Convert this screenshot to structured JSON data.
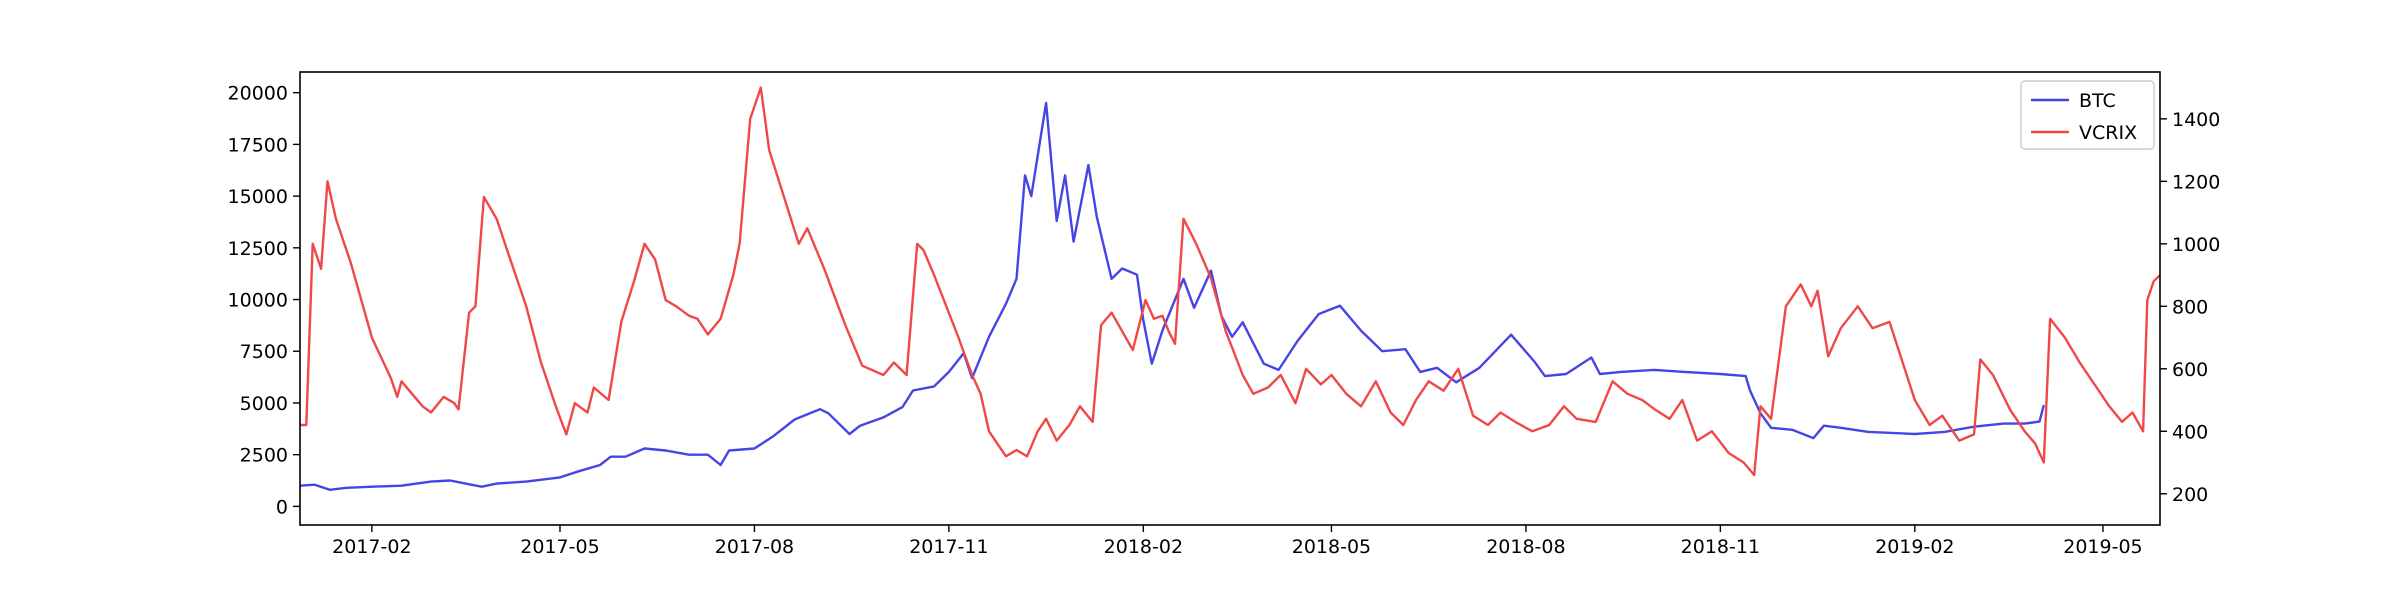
{
  "chart_data": {
    "type": "line",
    "title": "",
    "xlabel": "",
    "ylabel": "",
    "y2label": "",
    "x_range": [
      "2016-12-29",
      "2019-05-28"
    ],
    "ylim_left": [
      -900,
      21000
    ],
    "ylim_right": [
      100,
      1550
    ],
    "grid": false,
    "legend_position": "top-right",
    "x_ticks": [
      "2017-02",
      "2017-05",
      "2017-08",
      "2017-11",
      "2018-02",
      "2018-05",
      "2018-08",
      "2018-11",
      "2019-02",
      "2019-05"
    ],
    "x_tick_dates": [
      "2017-02-01",
      "2017-05-01",
      "2017-08-01",
      "2017-11-01",
      "2018-02-01",
      "2018-05-01",
      "2018-08-01",
      "2018-11-01",
      "2019-02-01",
      "2019-05-01"
    ],
    "y_ticks_left": [
      "0",
      "2500",
      "5000",
      "7500",
      "10000",
      "12500",
      "15000",
      "17500",
      "20000"
    ],
    "y_ticks_right": [
      "200",
      "400",
      "600",
      "800",
      "1000",
      "1200",
      "1400"
    ],
    "series": [
      {
        "name": "BTC",
        "axis": "left",
        "color": "#4545e6",
        "points": [
          [
            "2016-12-29",
            1000
          ],
          [
            "2017-01-05",
            1050
          ],
          [
            "2017-01-12",
            800
          ],
          [
            "2017-01-20",
            900
          ],
          [
            "2017-02-01",
            950
          ],
          [
            "2017-02-15",
            1000
          ],
          [
            "2017-03-01",
            1200
          ],
          [
            "2017-03-10",
            1250
          ],
          [
            "2017-03-20",
            1050
          ],
          [
            "2017-03-25",
            950
          ],
          [
            "2017-04-01",
            1100
          ],
          [
            "2017-04-15",
            1200
          ],
          [
            "2017-05-01",
            1400
          ],
          [
            "2017-05-10",
            1700
          ],
          [
            "2017-05-20",
            2000
          ],
          [
            "2017-05-25",
            2400
          ],
          [
            "2017-06-01",
            2400
          ],
          [
            "2017-06-10",
            2800
          ],
          [
            "2017-06-20",
            2700
          ],
          [
            "2017-07-01",
            2500
          ],
          [
            "2017-07-10",
            2500
          ],
          [
            "2017-07-16",
            2000
          ],
          [
            "2017-07-20",
            2700
          ],
          [
            "2017-08-01",
            2800
          ],
          [
            "2017-08-10",
            3400
          ],
          [
            "2017-08-20",
            4200
          ],
          [
            "2017-09-01",
            4700
          ],
          [
            "2017-09-05",
            4500
          ],
          [
            "2017-09-15",
            3500
          ],
          [
            "2017-09-20",
            3900
          ],
          [
            "2017-10-01",
            4300
          ],
          [
            "2017-10-10",
            4800
          ],
          [
            "2017-10-15",
            5600
          ],
          [
            "2017-10-25",
            5800
          ],
          [
            "2017-11-01",
            6500
          ],
          [
            "2017-11-08",
            7400
          ],
          [
            "2017-11-12",
            6200
          ],
          [
            "2017-11-20",
            8200
          ],
          [
            "2017-11-28",
            9800
          ],
          [
            "2017-12-03",
            11000
          ],
          [
            "2017-12-07",
            16000
          ],
          [
            "2017-12-10",
            15000
          ],
          [
            "2017-12-17",
            19500
          ],
          [
            "2017-12-22",
            13800
          ],
          [
            "2017-12-26",
            16000
          ],
          [
            "2017-12-30",
            12800
          ],
          [
            "2018-01-06",
            16500
          ],
          [
            "2018-01-10",
            14000
          ],
          [
            "2018-01-17",
            11000
          ],
          [
            "2018-01-22",
            11500
          ],
          [
            "2018-01-29",
            11200
          ],
          [
            "2018-02-01",
            9000
          ],
          [
            "2018-02-05",
            6900
          ],
          [
            "2018-02-10",
            8500
          ],
          [
            "2018-02-20",
            11000
          ],
          [
            "2018-02-25",
            9600
          ],
          [
            "2018-03-05",
            11400
          ],
          [
            "2018-03-10",
            9200
          ],
          [
            "2018-03-15",
            8200
          ],
          [
            "2018-03-20",
            8900
          ],
          [
            "2018-03-30",
            6900
          ],
          [
            "2018-04-06",
            6600
          ],
          [
            "2018-04-15",
            8000
          ],
          [
            "2018-04-25",
            9300
          ],
          [
            "2018-05-05",
            9700
          ],
          [
            "2018-05-15",
            8500
          ],
          [
            "2018-05-25",
            7500
          ],
          [
            "2018-06-05",
            7600
          ],
          [
            "2018-06-12",
            6500
          ],
          [
            "2018-06-20",
            6700
          ],
          [
            "2018-06-29",
            6000
          ],
          [
            "2018-07-10",
            6700
          ],
          [
            "2018-07-25",
            8300
          ],
          [
            "2018-08-05",
            7000
          ],
          [
            "2018-08-10",
            6300
          ],
          [
            "2018-08-20",
            6400
          ],
          [
            "2018-09-01",
            7200
          ],
          [
            "2018-09-05",
            6400
          ],
          [
            "2018-09-15",
            6500
          ],
          [
            "2018-10-01",
            6600
          ],
          [
            "2018-10-15",
            6500
          ],
          [
            "2018-11-01",
            6400
          ],
          [
            "2018-11-13",
            6300
          ],
          [
            "2018-11-15",
            5600
          ],
          [
            "2018-11-20",
            4500
          ],
          [
            "2018-11-25",
            3800
          ],
          [
            "2018-12-05",
            3700
          ],
          [
            "2018-12-15",
            3300
          ],
          [
            "2018-12-20",
            3900
          ],
          [
            "2018-12-28",
            3800
          ],
          [
            "2019-01-10",
            3600
          ],
          [
            "2019-02-01",
            3500
          ],
          [
            "2019-02-15",
            3600
          ],
          [
            "2019-03-01",
            3850
          ],
          [
            "2019-03-15",
            4000
          ],
          [
            "2019-03-25",
            4000
          ],
          [
            "2019-04-01",
            4100
          ],
          [
            "2019-04-03",
            4900
          ]
        ]
      },
      {
        "name": "VCRIX",
        "axis": "right",
        "color": "#f04848",
        "points": [
          [
            "2016-12-29",
            420
          ],
          [
            "2017-01-01",
            420
          ],
          [
            "2017-01-04",
            1000
          ],
          [
            "2017-01-08",
            920
          ],
          [
            "2017-01-11",
            1200
          ],
          [
            "2017-01-15",
            1080
          ],
          [
            "2017-01-22",
            940
          ],
          [
            "2017-02-01",
            700
          ],
          [
            "2017-02-10",
            570
          ],
          [
            "2017-02-13",
            510
          ],
          [
            "2017-02-15",
            560
          ],
          [
            "2017-02-25",
            480
          ],
          [
            "2017-03-01",
            460
          ],
          [
            "2017-03-07",
            510
          ],
          [
            "2017-03-12",
            490
          ],
          [
            "2017-03-14",
            470
          ],
          [
            "2017-03-19",
            780
          ],
          [
            "2017-03-22",
            800
          ],
          [
            "2017-03-26",
            1150
          ],
          [
            "2017-04-01",
            1080
          ],
          [
            "2017-04-05",
            1000
          ],
          [
            "2017-04-15",
            800
          ],
          [
            "2017-04-22",
            620
          ],
          [
            "2017-04-29",
            480
          ],
          [
            "2017-05-04",
            390
          ],
          [
            "2017-05-08",
            490
          ],
          [
            "2017-05-14",
            460
          ],
          [
            "2017-05-17",
            540
          ],
          [
            "2017-05-24",
            500
          ],
          [
            "2017-05-30",
            750
          ],
          [
            "2017-06-05",
            880
          ],
          [
            "2017-06-10",
            1000
          ],
          [
            "2017-06-15",
            950
          ],
          [
            "2017-06-20",
            820
          ],
          [
            "2017-06-25",
            800
          ],
          [
            "2017-07-01",
            770
          ],
          [
            "2017-07-05",
            760
          ],
          [
            "2017-07-10",
            710
          ],
          [
            "2017-07-16",
            760
          ],
          [
            "2017-07-22",
            900
          ],
          [
            "2017-07-25",
            1000
          ],
          [
            "2017-07-30",
            1400
          ],
          [
            "2017-08-04",
            1500
          ],
          [
            "2017-08-08",
            1300
          ],
          [
            "2017-08-15",
            1150
          ],
          [
            "2017-08-22",
            1000
          ],
          [
            "2017-08-26",
            1050
          ],
          [
            "2017-09-03",
            920
          ],
          [
            "2017-09-13",
            740
          ],
          [
            "2017-09-21",
            610
          ],
          [
            "2017-10-01",
            580
          ],
          [
            "2017-10-06",
            620
          ],
          [
            "2017-10-12",
            580
          ],
          [
            "2017-10-17",
            1000
          ],
          [
            "2017-10-20",
            980
          ],
          [
            "2017-10-25",
            900
          ],
          [
            "2017-11-05",
            710
          ],
          [
            "2017-11-12",
            580
          ],
          [
            "2017-11-16",
            520
          ],
          [
            "2017-11-20",
            400
          ],
          [
            "2017-11-25",
            350
          ],
          [
            "2017-11-28",
            320
          ],
          [
            "2017-12-03",
            340
          ],
          [
            "2017-12-08",
            320
          ],
          [
            "2017-12-13",
            400
          ],
          [
            "2017-12-17",
            440
          ],
          [
            "2017-12-22",
            370
          ],
          [
            "2017-12-28",
            420
          ],
          [
            "2018-01-02",
            480
          ],
          [
            "2018-01-08",
            430
          ],
          [
            "2018-01-12",
            740
          ],
          [
            "2018-01-17",
            780
          ],
          [
            "2018-01-22",
            720
          ],
          [
            "2018-01-27",
            660
          ],
          [
            "2018-02-02",
            820
          ],
          [
            "2018-02-06",
            760
          ],
          [
            "2018-02-10",
            770
          ],
          [
            "2018-02-13",
            720
          ],
          [
            "2018-02-16",
            680
          ],
          [
            "2018-02-20",
            1080
          ],
          [
            "2018-02-26",
            1000
          ],
          [
            "2018-03-05",
            890
          ],
          [
            "2018-03-12",
            720
          ],
          [
            "2018-03-20",
            580
          ],
          [
            "2018-03-25",
            520
          ],
          [
            "2018-04-01",
            540
          ],
          [
            "2018-04-07",
            580
          ],
          [
            "2018-04-14",
            490
          ],
          [
            "2018-04-19",
            600
          ],
          [
            "2018-04-26",
            550
          ],
          [
            "2018-05-01",
            580
          ],
          [
            "2018-05-08",
            520
          ],
          [
            "2018-05-15",
            480
          ],
          [
            "2018-05-22",
            560
          ],
          [
            "2018-05-29",
            460
          ],
          [
            "2018-06-04",
            420
          ],
          [
            "2018-06-10",
            500
          ],
          [
            "2018-06-16",
            560
          ],
          [
            "2018-06-23",
            530
          ],
          [
            "2018-06-30",
            600
          ],
          [
            "2018-07-07",
            450
          ],
          [
            "2018-07-14",
            420
          ],
          [
            "2018-07-20",
            460
          ],
          [
            "2018-07-27",
            430
          ],
          [
            "2018-08-04",
            400
          ],
          [
            "2018-08-12",
            420
          ],
          [
            "2018-08-19",
            480
          ],
          [
            "2018-08-25",
            440
          ],
          [
            "2018-09-03",
            430
          ],
          [
            "2018-09-11",
            560
          ],
          [
            "2018-09-18",
            520
          ],
          [
            "2018-09-25",
            500
          ],
          [
            "2018-10-01",
            470
          ],
          [
            "2018-10-08",
            440
          ],
          [
            "2018-10-14",
            500
          ],
          [
            "2018-10-21",
            370
          ],
          [
            "2018-10-28",
            400
          ],
          [
            "2018-11-05",
            330
          ],
          [
            "2018-11-12",
            300
          ],
          [
            "2018-11-17",
            260
          ],
          [
            "2018-11-20",
            480
          ],
          [
            "2018-11-25",
            440
          ],
          [
            "2018-12-02",
            800
          ],
          [
            "2018-12-09",
            870
          ],
          [
            "2018-12-14",
            800
          ],
          [
            "2018-12-17",
            850
          ],
          [
            "2018-12-22",
            640
          ],
          [
            "2018-12-28",
            730
          ],
          [
            "2019-01-05",
            800
          ],
          [
            "2019-01-12",
            730
          ],
          [
            "2019-01-20",
            750
          ],
          [
            "2019-02-01",
            500
          ],
          [
            "2019-02-08",
            420
          ],
          [
            "2019-02-14",
            450
          ],
          [
            "2019-02-22",
            370
          ],
          [
            "2019-03-01",
            390
          ],
          [
            "2019-03-04",
            630
          ],
          [
            "2019-03-10",
            580
          ],
          [
            "2019-03-18",
            470
          ],
          [
            "2019-03-25",
            400
          ],
          [
            "2019-03-30",
            360
          ],
          [
            "2019-04-01",
            330
          ],
          [
            "2019-04-03",
            300
          ],
          [
            "2019-04-06",
            760
          ],
          [
            "2019-04-13",
            700
          ],
          [
            "2019-04-20",
            620
          ],
          [
            "2019-04-28",
            540
          ],
          [
            "2019-05-04",
            480
          ],
          [
            "2019-05-10",
            430
          ],
          [
            "2019-05-15",
            460
          ],
          [
            "2019-05-20",
            400
          ],
          [
            "2019-05-22",
            820
          ],
          [
            "2019-05-25",
            880
          ],
          [
            "2019-05-28",
            900
          ]
        ]
      }
    ]
  }
}
